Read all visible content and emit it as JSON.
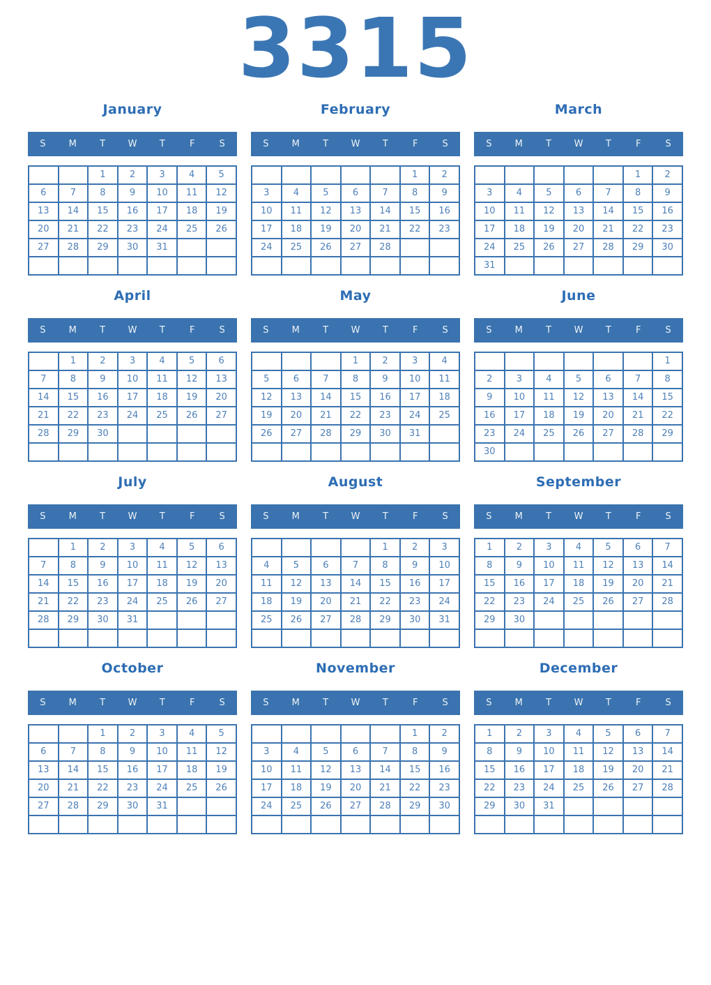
{
  "year": "3315",
  "weekday_headers": [
    "S",
    "M",
    "T",
    "W",
    "T",
    "F",
    "S"
  ],
  "colors": {
    "year_title": "#3b76b4",
    "month_title": "#2d6db4",
    "header_bg": "#3a73af",
    "grid_border": "#3a73af",
    "day_text": "#4d80b8"
  },
  "months": [
    {
      "name": "January",
      "weeks": [
        [
          "",
          "",
          "1",
          "2",
          "3",
          "4",
          "5"
        ],
        [
          "6",
          "7",
          "8",
          "9",
          "10",
          "11",
          "12"
        ],
        [
          "13",
          "14",
          "15",
          "16",
          "17",
          "18",
          "19"
        ],
        [
          "20",
          "21",
          "22",
          "23",
          "24",
          "25",
          "26"
        ],
        [
          "27",
          "28",
          "29",
          "30",
          "31",
          "",
          ""
        ],
        [
          "",
          "",
          "",
          "",
          "",
          "",
          ""
        ]
      ]
    },
    {
      "name": "February",
      "weeks": [
        [
          "",
          "",
          "",
          "",
          "",
          "1",
          "2"
        ],
        [
          "3",
          "4",
          "5",
          "6",
          "7",
          "8",
          "9"
        ],
        [
          "10",
          "11",
          "12",
          "13",
          "14",
          "15",
          "16"
        ],
        [
          "17",
          "18",
          "19",
          "20",
          "21",
          "22",
          "23"
        ],
        [
          "24",
          "25",
          "26",
          "27",
          "28",
          "",
          ""
        ],
        [
          "",
          "",
          "",
          "",
          "",
          "",
          ""
        ]
      ]
    },
    {
      "name": "March",
      "weeks": [
        [
          "",
          "",
          "",
          "",
          "",
          "1",
          "2"
        ],
        [
          "3",
          "4",
          "5",
          "6",
          "7",
          "8",
          "9"
        ],
        [
          "10",
          "11",
          "12",
          "13",
          "14",
          "15",
          "16"
        ],
        [
          "17",
          "18",
          "19",
          "20",
          "21",
          "22",
          "23"
        ],
        [
          "24",
          "25",
          "26",
          "27",
          "28",
          "29",
          "30"
        ],
        [
          "31",
          "",
          "",
          "",
          "",
          "",
          ""
        ]
      ]
    },
    {
      "name": "April",
      "weeks": [
        [
          "",
          "1",
          "2",
          "3",
          "4",
          "5",
          "6"
        ],
        [
          "7",
          "8",
          "9",
          "10",
          "11",
          "12",
          "13"
        ],
        [
          "14",
          "15",
          "16",
          "17",
          "18",
          "19",
          "20"
        ],
        [
          "21",
          "22",
          "23",
          "24",
          "25",
          "26",
          "27"
        ],
        [
          "28",
          "29",
          "30",
          "",
          "",
          "",
          ""
        ],
        [
          "",
          "",
          "",
          "",
          "",
          "",
          ""
        ]
      ]
    },
    {
      "name": "May",
      "weeks": [
        [
          "",
          "",
          "",
          "1",
          "2",
          "3",
          "4"
        ],
        [
          "5",
          "6",
          "7",
          "8",
          "9",
          "10",
          "11"
        ],
        [
          "12",
          "13",
          "14",
          "15",
          "16",
          "17",
          "18"
        ],
        [
          "19",
          "20",
          "21",
          "22",
          "23",
          "24",
          "25"
        ],
        [
          "26",
          "27",
          "28",
          "29",
          "30",
          "31",
          ""
        ],
        [
          "",
          "",
          "",
          "",
          "",
          "",
          ""
        ]
      ]
    },
    {
      "name": "June",
      "weeks": [
        [
          "",
          "",
          "",
          "",
          "",
          "",
          "1"
        ],
        [
          "2",
          "3",
          "4",
          "5",
          "6",
          "7",
          "8"
        ],
        [
          "9",
          "10",
          "11",
          "12",
          "13",
          "14",
          "15"
        ],
        [
          "16",
          "17",
          "18",
          "19",
          "20",
          "21",
          "22"
        ],
        [
          "23",
          "24",
          "25",
          "26",
          "27",
          "28",
          "29"
        ],
        [
          "30",
          "",
          "",
          "",
          "",
          "",
          ""
        ]
      ]
    },
    {
      "name": "July",
      "weeks": [
        [
          "",
          "1",
          "2",
          "3",
          "4",
          "5",
          "6"
        ],
        [
          "7",
          "8",
          "9",
          "10",
          "11",
          "12",
          "13"
        ],
        [
          "14",
          "15",
          "16",
          "17",
          "18",
          "19",
          "20"
        ],
        [
          "21",
          "22",
          "23",
          "24",
          "25",
          "26",
          "27"
        ],
        [
          "28",
          "29",
          "30",
          "31",
          "",
          "",
          ""
        ],
        [
          "",
          "",
          "",
          "",
          "",
          "",
          ""
        ]
      ]
    },
    {
      "name": "August",
      "weeks": [
        [
          "",
          "",
          "",
          "",
          "1",
          "2",
          "3"
        ],
        [
          "4",
          "5",
          "6",
          "7",
          "8",
          "9",
          "10"
        ],
        [
          "11",
          "12",
          "13",
          "14",
          "15",
          "16",
          "17"
        ],
        [
          "18",
          "19",
          "20",
          "21",
          "22",
          "23",
          "24"
        ],
        [
          "25",
          "26",
          "27",
          "28",
          "29",
          "30",
          "31"
        ],
        [
          "",
          "",
          "",
          "",
          "",
          "",
          ""
        ]
      ]
    },
    {
      "name": "September",
      "weeks": [
        [
          "1",
          "2",
          "3",
          "4",
          "5",
          "6",
          "7"
        ],
        [
          "8",
          "9",
          "10",
          "11",
          "12",
          "13",
          "14"
        ],
        [
          "15",
          "16",
          "17",
          "18",
          "19",
          "20",
          "21"
        ],
        [
          "22",
          "23",
          "24",
          "25",
          "26",
          "27",
          "28"
        ],
        [
          "29",
          "30",
          "",
          "",
          "",
          "",
          ""
        ],
        [
          "",
          "",
          "",
          "",
          "",
          "",
          ""
        ]
      ]
    },
    {
      "name": "October",
      "weeks": [
        [
          "",
          "",
          "1",
          "2",
          "3",
          "4",
          "5"
        ],
        [
          "6",
          "7",
          "8",
          "9",
          "10",
          "11",
          "12"
        ],
        [
          "13",
          "14",
          "15",
          "16",
          "17",
          "18",
          "19"
        ],
        [
          "20",
          "21",
          "22",
          "23",
          "24",
          "25",
          "26"
        ],
        [
          "27",
          "28",
          "29",
          "30",
          "31",
          "",
          ""
        ],
        [
          "",
          "",
          "",
          "",
          "",
          "",
          ""
        ]
      ]
    },
    {
      "name": "November",
      "weeks": [
        [
          "",
          "",
          "",
          "",
          "",
          "1",
          "2"
        ],
        [
          "3",
          "4",
          "5",
          "6",
          "7",
          "8",
          "9"
        ],
        [
          "10",
          "11",
          "12",
          "13",
          "14",
          "15",
          "16"
        ],
        [
          "17",
          "18",
          "19",
          "20",
          "21",
          "22",
          "23"
        ],
        [
          "24",
          "25",
          "26",
          "27",
          "28",
          "29",
          "30"
        ],
        [
          "",
          "",
          "",
          "",
          "",
          "",
          ""
        ]
      ]
    },
    {
      "name": "December",
      "weeks": [
        [
          "1",
          "2",
          "3",
          "4",
          "5",
          "6",
          "7"
        ],
        [
          "8",
          "9",
          "10",
          "11",
          "12",
          "13",
          "14"
        ],
        [
          "15",
          "16",
          "17",
          "18",
          "19",
          "20",
          "21"
        ],
        [
          "22",
          "23",
          "24",
          "25",
          "26",
          "27",
          "28"
        ],
        [
          "29",
          "30",
          "31",
          "",
          "",
          "",
          ""
        ],
        [
          "",
          "",
          "",
          "",
          "",
          "",
          ""
        ]
      ]
    }
  ]
}
